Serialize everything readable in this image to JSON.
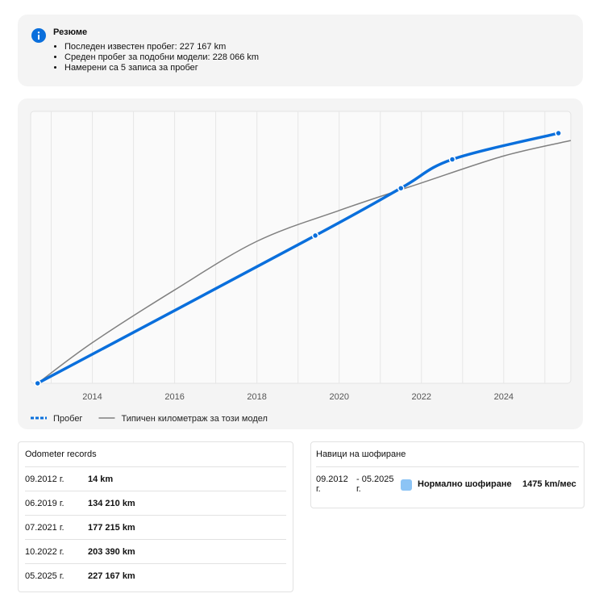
{
  "summary": {
    "title": "Резюме",
    "items": [
      "Последен известен пробег: 227 167 km",
      "Среден пробег за подобни модели: 228 066 km",
      "Намерени са 5 записа за пробег"
    ]
  },
  "chart_data": {
    "type": "line",
    "xlim": [
      2012.5,
      2025.63
    ],
    "ylim": [
      0,
      247000
    ],
    "xticks": [
      2014,
      2016,
      2018,
      2020,
      2022,
      2024
    ],
    "xminor": [
      2013,
      2015,
      2017,
      2019,
      2021,
      2023,
      2025
    ],
    "grid": true,
    "series": [
      {
        "name": "Пробег",
        "color": "#0a6fdc",
        "x": [
          2012.67,
          2019.42,
          2021.5,
          2022.75,
          2025.33
        ],
        "values": [
          14,
          134210,
          177215,
          203390,
          227167
        ]
      },
      {
        "name": "Типичен километраж за този модел",
        "color": "#808080",
        "x": [
          2012.67,
          2014,
          2016,
          2018,
          2020,
          2022,
          2024,
          2025.63
        ],
        "values": [
          14,
          36900,
          84800,
          129000,
          157000,
          182000,
          206500,
          220500
        ]
      }
    ]
  },
  "odometer": {
    "title": "Odometer records",
    "rows": [
      [
        "09.2012 г.",
        "14 km"
      ],
      [
        "06.2019 г.",
        "134 210 km"
      ],
      [
        "07.2021 г.",
        "177 215 km"
      ],
      [
        "10.2022 г.",
        "203 390 km"
      ],
      [
        "05.2025 г.",
        "227 167 km"
      ]
    ]
  },
  "habits": {
    "title": "Навици на шофиране",
    "rows": [
      [
        "09.2012 г.",
        "- 05.2025 г.",
        "Нормално шофиране",
        "1475 km/мес"
      ]
    ]
  }
}
